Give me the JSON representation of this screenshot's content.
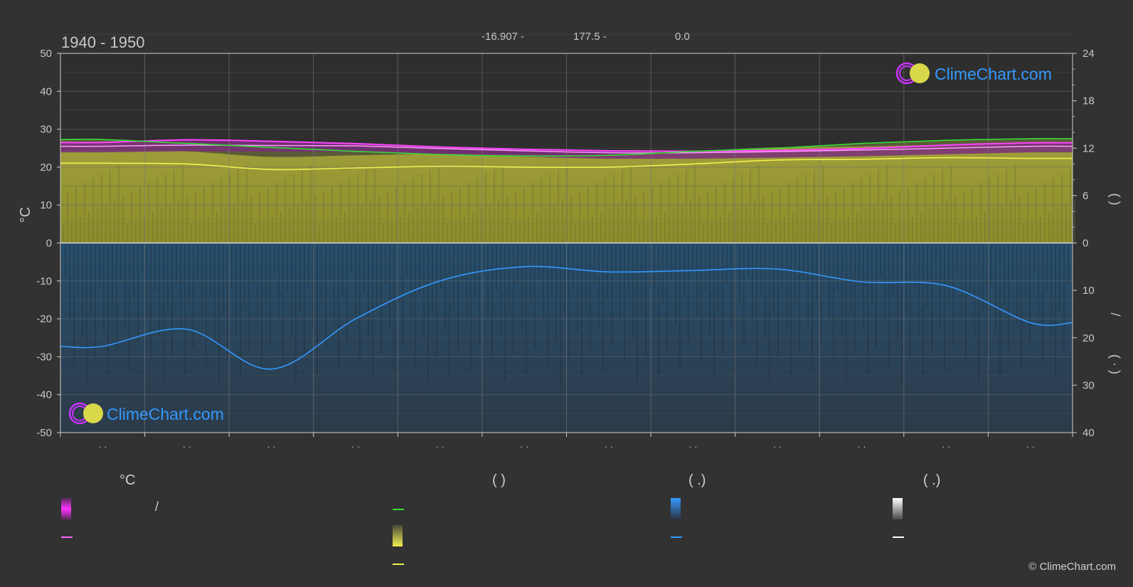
{
  "header": {
    "period": "1940 - 1950",
    "lat": "-16.907 -",
    "lon": "177.5 -",
    "elev": "0.0"
  },
  "axes": {
    "left_label": "°C",
    "left_ticks": [
      "50",
      "40",
      "30",
      "20",
      "10",
      "0",
      "-10",
      "-20",
      "-30",
      "-40",
      "-50"
    ],
    "right_top_ticks": [
      "24",
      "18",
      "12",
      "6",
      "0"
    ],
    "right_bottom_ticks": [
      "10",
      "20",
      "30",
      "40"
    ],
    "right_label_top": "( )",
    "right_label_mid": "/",
    "right_label_bot": "( · )",
    "x_ticks": [
      "· ·",
      "· ·",
      "· ·",
      "· ·",
      "· ·",
      "· ·",
      "· ·",
      "· ·",
      "· ·",
      "· ·",
      "· ·",
      "· ·"
    ]
  },
  "legend": {
    "col1_head": "°C",
    "col1_row1": "/",
    "col2_head": "(          )",
    "col3_head": "(   .)",
    "col4_head": "(   .)"
  },
  "watermark": "ClimeChart.com",
  "copyright": "© ClimeChart.com",
  "colors": {
    "magenta": "#ff33ff",
    "green": "#33dd33",
    "yellow": "#f0f050",
    "blue": "#3399ff",
    "white": "#ffffff"
  },
  "chart_data": {
    "type": "line",
    "months": 12,
    "left_ylim": [
      -50,
      50
    ],
    "right_top_ylim": [
      0,
      24
    ],
    "right_bottom_ylim": [
      0,
      40
    ],
    "series": [
      {
        "key": "temp_max_range_upper",
        "values": [
          26.5,
          27.2,
          26.8,
          26.2,
          25.3,
          24.7,
          24.3,
          24.2,
          24.4,
          24.9,
          25.8,
          26.4
        ]
      },
      {
        "key": "temp_mean",
        "values": [
          25.5,
          25.8,
          25.7,
          25.6,
          24.9,
          24.3,
          23.8,
          23.8,
          24.1,
          24.5,
          25.0,
          25.5
        ]
      },
      {
        "key": "daylight",
        "values": [
          13.1,
          12.6,
          12.1,
          11.6,
          11.2,
          11.0,
          11.1,
          11.6,
          12.0,
          12.6,
          13.0,
          13.2
        ]
      },
      {
        "key": "sunshine",
        "values": [
          10.1,
          10.0,
          9.3,
          9.5,
          9.7,
          9.6,
          9.6,
          10.0,
          10.5,
          10.6,
          10.8,
          10.7
        ]
      },
      {
        "key": "precipitation",
        "values": [
          21.8,
          18.2,
          26.6,
          16.0,
          8.0,
          5.0,
          6.1,
          5.8,
          5.5,
          8.2,
          9.0,
          16.8
        ]
      }
    ]
  }
}
